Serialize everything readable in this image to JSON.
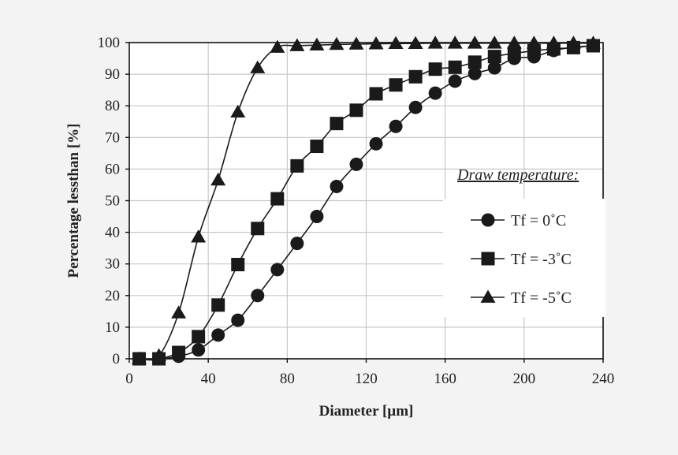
{
  "chart_data": {
    "type": "line",
    "xlabel": "Diameter [µm]",
    "ylabel": "Percentage lessthan [%]",
    "xlim": [
      0,
      240
    ],
    "ylim": [
      0,
      100
    ],
    "xticks": [
      0,
      40,
      80,
      120,
      160,
      200,
      240
    ],
    "yticks": [
      0,
      10,
      20,
      30,
      40,
      50,
      60,
      70,
      80,
      90,
      100
    ],
    "grid": true,
    "legend_title": "Draw temperature:",
    "legend_position": "right",
    "series": [
      {
        "name": "Tf = 0˚C",
        "marker": "circle",
        "x": [
          5,
          15,
          25,
          35,
          45,
          55,
          65,
          75,
          85,
          95,
          105,
          115,
          125,
          135,
          145,
          155,
          165,
          175,
          185,
          195,
          205,
          215,
          225,
          235
        ],
        "y": [
          0,
          0,
          0.8,
          2.8,
          7.5,
          12.2,
          20,
          28.2,
          36.5,
          45,
          54.5,
          61.5,
          68,
          73.5,
          79.5,
          84,
          87.8,
          90.2,
          92,
          95,
          95.5,
          97.5,
          98.5,
          99
        ]
      },
      {
        "name": "Tf = -3˚C",
        "marker": "square",
        "x": [
          5,
          15,
          25,
          35,
          45,
          55,
          65,
          75,
          85,
          95,
          105,
          115,
          125,
          135,
          145,
          155,
          165,
          175,
          185,
          195,
          205,
          215,
          225,
          235
        ],
        "y": [
          0,
          0,
          2,
          7,
          17,
          29.8,
          41.2,
          50.6,
          61,
          67.2,
          74.4,
          78.6,
          83.8,
          86.6,
          89.2,
          91.6,
          92.2,
          93.8,
          95.6,
          96.6,
          97.4,
          98,
          98.4,
          99
        ]
      },
      {
        "name": "Tf = -5˚C",
        "marker": "triangle",
        "x": [
          5,
          15,
          25,
          35,
          45,
          55,
          65,
          75,
          85,
          95,
          105,
          115,
          125,
          135,
          145,
          155,
          165,
          175,
          185,
          195,
          205,
          215,
          225,
          235
        ],
        "y": [
          0,
          1,
          14.5,
          38.5,
          56.5,
          78,
          92,
          98.5,
          99,
          99.2,
          99.4,
          99.5,
          99.6,
          99.7,
          99.7,
          99.8,
          99.8,
          99.8,
          99.8,
          99.8,
          99.8,
          99.8,
          99.8,
          99.8
        ]
      }
    ]
  }
}
